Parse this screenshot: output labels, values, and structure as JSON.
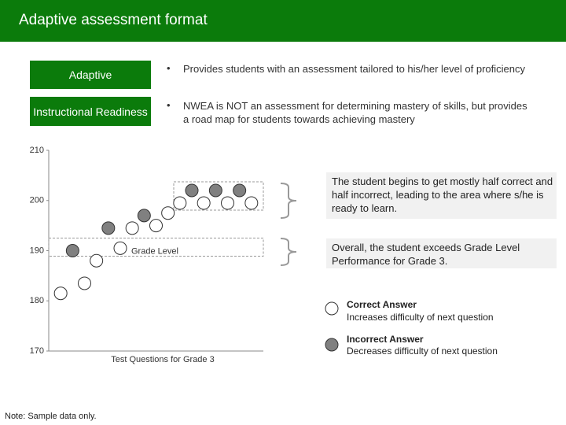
{
  "header": {
    "title": "Adaptive assessment format"
  },
  "rows": [
    {
      "label": "Adaptive",
      "text": "Provides students with an assessment tailored to his/her level of proficiency"
    },
    {
      "label": "Instructional Readiness",
      "text": "NWEA is NOT an assessment for determining mastery of skills, but provides a road map for students towards achieving mastery"
    }
  ],
  "bullet": "•",
  "footnote": "Note: Sample data only.",
  "callouts": [
    "The student begins to get mostly half correct and half incorrect, leading to the area where s/he is ready to learn.",
    "Overall, the student exceeds Grade Level Performance for Grade 3."
  ],
  "legend_descriptions": [
    "Increases difficulty of next question",
    "Decreases difficulty of next question"
  ],
  "chart_data": {
    "type": "scatter",
    "x_label": "Test Questions for Grade 3",
    "annotation": "Grade Level",
    "xlim": [
      0,
      18
    ],
    "ylim": [
      170,
      210
    ],
    "yticks": [
      170,
      180,
      190,
      200,
      210
    ],
    "series": [
      {
        "name": "Correct Answer",
        "color": "#ffffff",
        "x": [
          1,
          3,
          4,
          6,
          7,
          9,
          10,
          11,
          13,
          15,
          17
        ],
        "values": [
          181.5,
          183.5,
          188,
          190.5,
          194.5,
          195,
          197.5,
          199.5,
          199.5,
          199.5,
          199.5
        ]
      },
      {
        "name": "Incorrect Answer",
        "color": "#808080",
        "x": [
          2,
          5,
          8,
          12,
          14,
          16
        ],
        "values": [
          190,
          194.5,
          197,
          202,
          202,
          202
        ]
      }
    ]
  }
}
